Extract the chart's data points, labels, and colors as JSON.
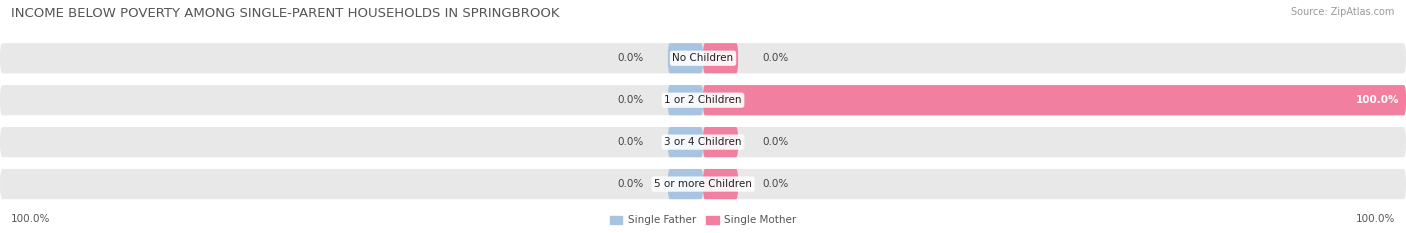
{
  "title": "INCOME BELOW POVERTY AMONG SINGLE-PARENT HOUSEHOLDS IN SPRINGBROOK",
  "source": "Source: ZipAtlas.com",
  "categories": [
    "No Children",
    "1 or 2 Children",
    "3 or 4 Children",
    "5 or more Children"
  ],
  "single_father": [
    0.0,
    0.0,
    0.0,
    0.0
  ],
  "single_mother": [
    0.0,
    100.0,
    0.0,
    0.0
  ],
  "father_color": "#a8c4e0",
  "mother_color": "#f07fa0",
  "bar_bg_color": "#e8e8e8",
  "bar_bg_light": "#f0f0f0",
  "x_axis_left_label": "100.0%",
  "x_axis_right_label": "100.0%",
  "legend_father": "Single Father",
  "legend_mother": "Single Mother",
  "title_fontsize": 9.5,
  "source_fontsize": 7,
  "label_fontsize": 7.5,
  "category_fontsize": 7.5,
  "axis_label_fontsize": 7.5,
  "background_color": "#ffffff"
}
